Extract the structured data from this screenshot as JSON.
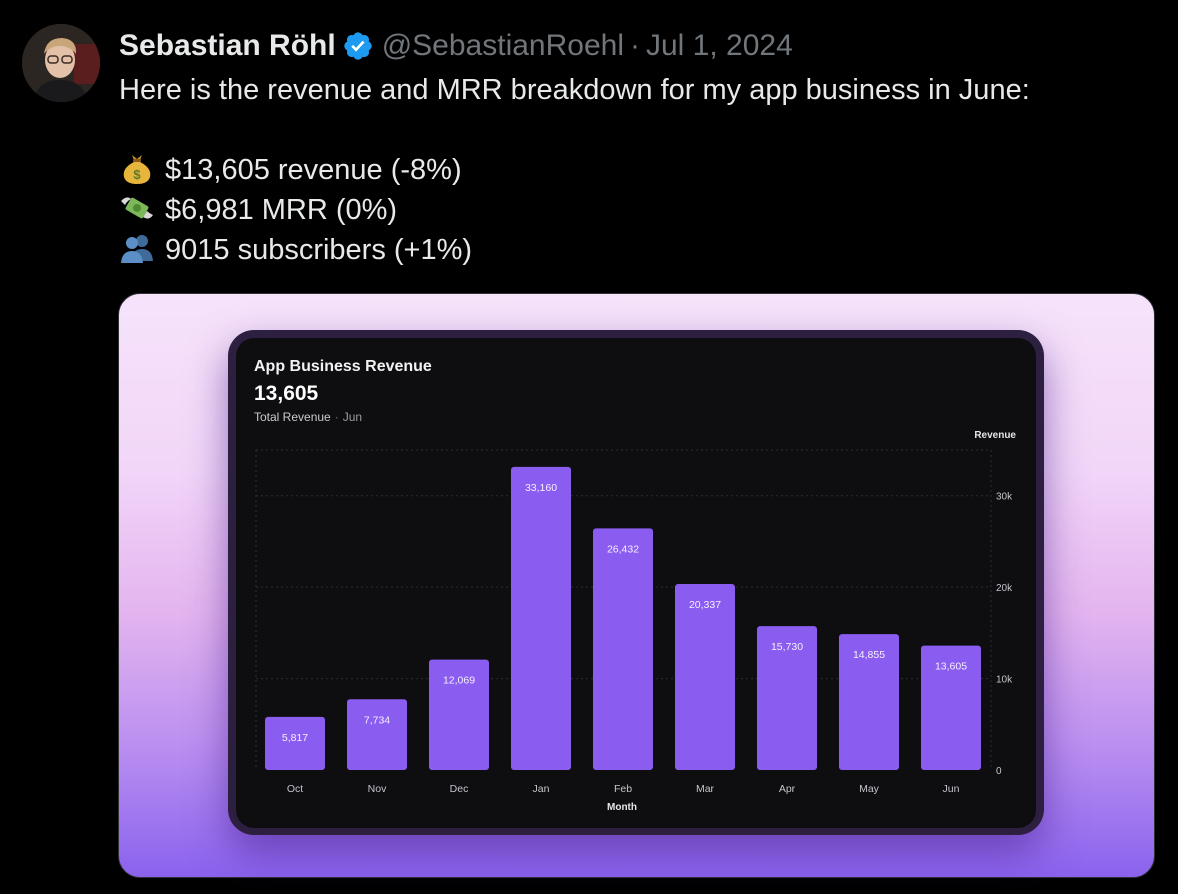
{
  "tweet": {
    "author_name": "Sebastian Röhl",
    "handle": "@SebastianRoehl",
    "separator": "·",
    "date": "Jul 1, 2024",
    "text_intro": "Here is the revenue and MRR breakdown for my app business in June:",
    "stats": [
      {
        "icon": "money-bag-icon",
        "text": "$13,605 revenue (-8%)"
      },
      {
        "icon": "money-with-wings-icon",
        "text": "$6,981 MRR (0%)"
      },
      {
        "icon": "busts-in-silhouette-icon",
        "text": "9015 subscribers (+1%)"
      }
    ],
    "verified_color": "#1d9bf0"
  },
  "card": {
    "title": "App Business Revenue",
    "total": "13,605",
    "subtitle": "Total Revenue",
    "subtitle_sep": "·",
    "subtitle_period": "Jun"
  },
  "chart_data": {
    "type": "bar",
    "title": "App Business Revenue",
    "xlabel": "Month",
    "ylabel": "Revenue",
    "categories": [
      "Oct",
      "Nov",
      "Dec",
      "Jan",
      "Feb",
      "Mar",
      "Apr",
      "May",
      "Jun"
    ],
    "values": [
      5817,
      7734,
      12069,
      33160,
      26432,
      20337,
      15730,
      14855,
      13605
    ],
    "value_labels": [
      "5,817",
      "7,734",
      "12,069",
      "33,160",
      "26,432",
      "20,337",
      "15,730",
      "14,855",
      "13,605"
    ],
    "yticks": [
      0,
      10000,
      20000,
      30000
    ],
    "ytick_labels": [
      "0",
      "10k",
      "20k",
      "30k"
    ],
    "ylim": [
      0,
      35000
    ],
    "y_axis_position": "right",
    "grid": true,
    "bar_color": "#8b5cf0"
  }
}
